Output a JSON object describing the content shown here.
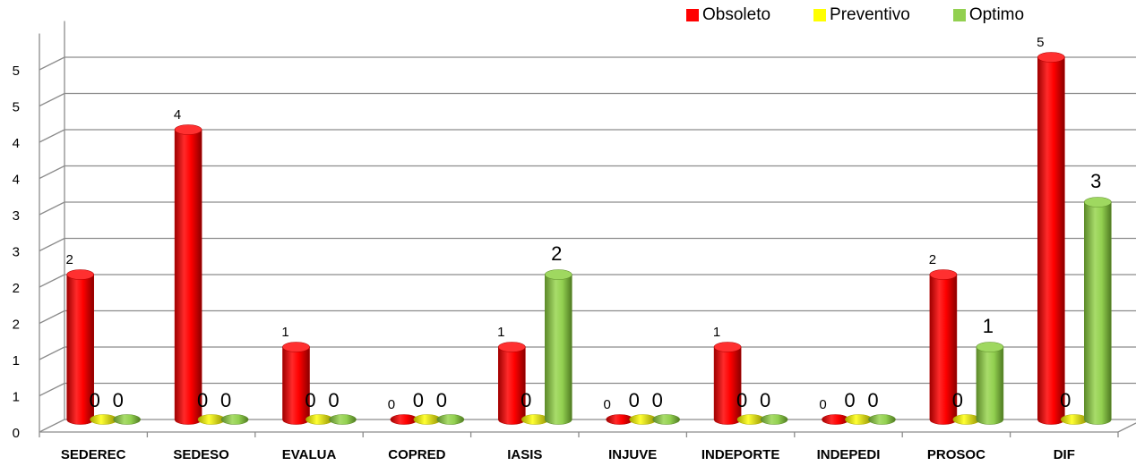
{
  "chart_data": {
    "type": "bar",
    "categories": [
      "SEDEREC",
      "SEDESO",
      "EVALUA",
      "COPRED",
      "IASIS",
      "INJUVE",
      "INDEPORTE",
      "INDEPEDI",
      "PROSOC",
      "DIF"
    ],
    "series": [
      {
        "name": "Obsoleto",
        "values": [
          2,
          4,
          1,
          0,
          1,
          0,
          1,
          0,
          2,
          5
        ]
      },
      {
        "name": "Preventivo",
        "values": [
          0,
          0,
          0,
          0,
          0,
          0,
          0,
          0,
          0,
          0
        ]
      },
      {
        "name": "Optimo",
        "values": [
          0,
          0,
          0,
          0,
          2,
          0,
          0,
          0,
          1,
          3
        ]
      }
    ],
    "labels": [
      [
        "2",
        "0",
        "0"
      ],
      [
        "4",
        "0",
        "0"
      ],
      [
        "1",
        "0",
        "0"
      ],
      [
        "0",
        "0",
        "0"
      ],
      [
        "1",
        "0",
        "2"
      ],
      [
        "0",
        "0",
        "0"
      ],
      [
        "1",
        "0",
        "0"
      ],
      [
        "0",
        "0",
        "0"
      ],
      [
        "2",
        "0",
        "1"
      ],
      [
        "5",
        "0",
        "3"
      ]
    ],
    "y_tick_labels": [
      "0",
      "1",
      "1",
      "2",
      "2",
      "3",
      "3",
      "4",
      "4",
      "5",
      "5"
    ],
    "ylim": [
      0,
      5.5
    ],
    "grid": true,
    "legend_position": "top-right",
    "colors": {
      "Obsoleto": "#ff0000",
      "Preventivo": "#ffff00",
      "Optimo": "#92d050"
    }
  }
}
